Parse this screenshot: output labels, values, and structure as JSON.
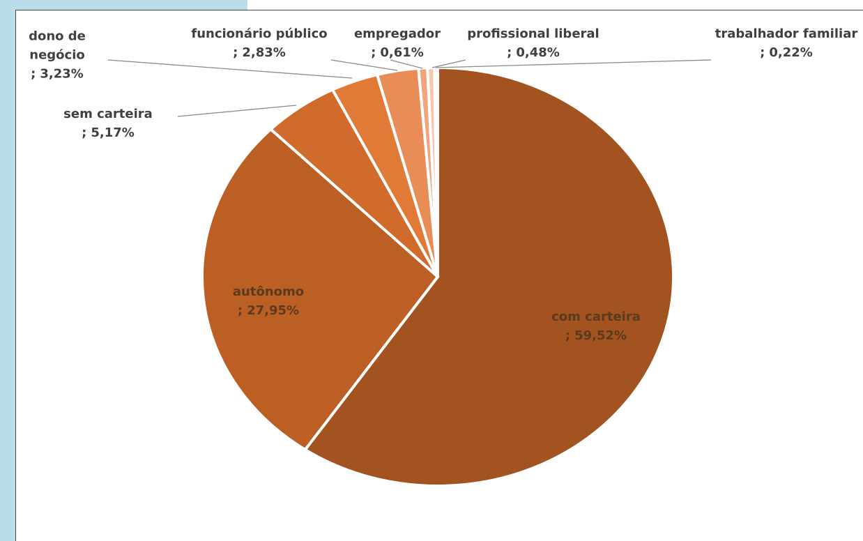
{
  "chart_data": {
    "type": "pie",
    "categories": [
      "com carteira ;",
      "autônomo ;",
      "sem carteira ;",
      "dono de negócio ;",
      "funcionário público ;",
      "empregador ;",
      "profissional liberal ;",
      "trabalhador familiar ;"
    ],
    "values": [
      59.52,
      27.95,
      5.17,
      3.23,
      2.83,
      0.61,
      0.48,
      0.22
    ],
    "value_labels": [
      "59,52%",
      "27,95%",
      "5,17%",
      "3,23%",
      "2,83%",
      "0,61%",
      "0,48%",
      "0,22%"
    ],
    "colors": [
      "#a3531f",
      "#bc5f24",
      "#d06b2c",
      "#e07a36",
      "#e88d58",
      "#f0a57c",
      "#f6c6ad",
      "#fbe0d2"
    ]
  }
}
